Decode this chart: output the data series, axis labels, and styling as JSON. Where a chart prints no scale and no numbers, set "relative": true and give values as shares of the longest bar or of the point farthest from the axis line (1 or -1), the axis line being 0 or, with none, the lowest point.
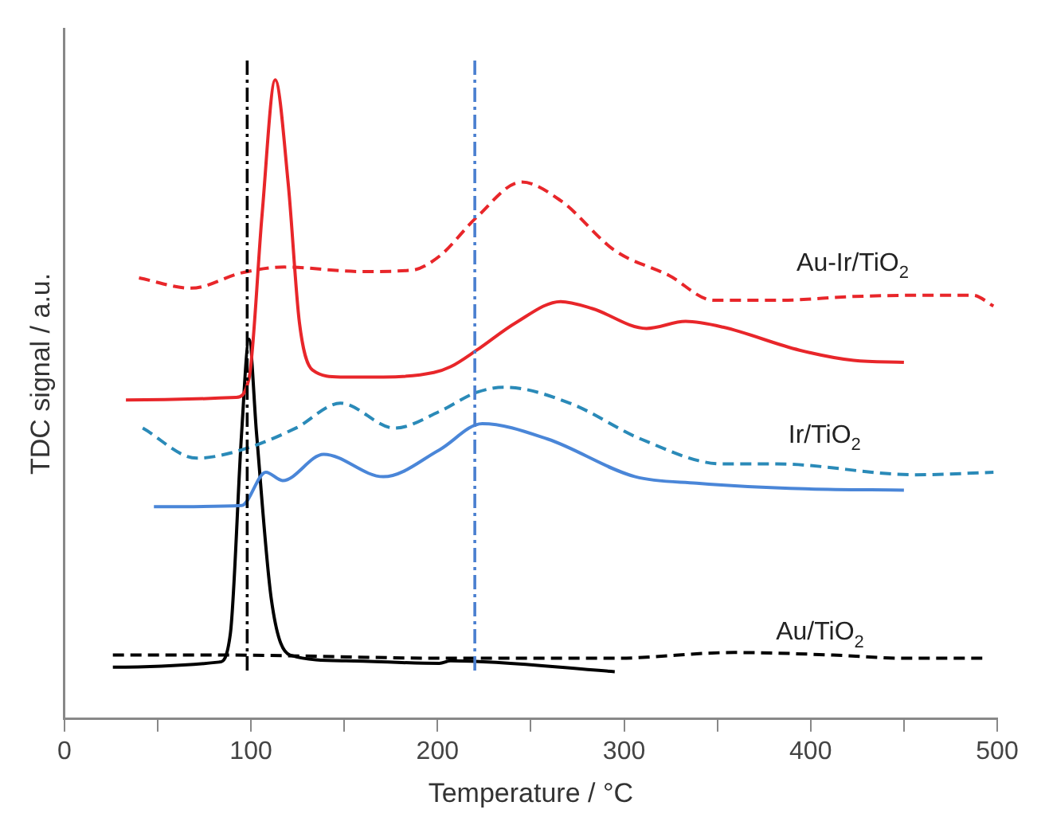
{
  "chart_data": {
    "type": "line",
    "xlabel": "Temperature / °C",
    "ylabel": "TDC signal / a.u.",
    "relative": true,
    "legend": false,
    "grid": false,
    "marker": "none",
    "xlim": [
      0,
      500
    ],
    "xticks": [
      0,
      {
        "value": 50,
        "label": null
      },
      100,
      {
        "value": 150,
        "label": null
      },
      200,
      {
        "value": 250,
        "label": null
      },
      300,
      {
        "value": 350,
        "label": null
      },
      400,
      {
        "value": 450,
        "label": null
      },
      500
    ],
    "series": [
      {
        "color": "#e8262a",
        "line_style": "dashed",
        "x": [
          40,
          68,
          95,
          118,
          159,
          186,
          201,
          221,
          245,
          266,
          295,
          324,
          348,
          383,
          423,
          464,
          487,
          498
        ],
        "values": [
          0.69,
          0.674,
          0.698,
          0.707,
          0.7,
          0.702,
          0.724,
          0.785,
          0.84,
          0.811,
          0.733,
          0.694,
          0.655,
          0.655,
          0.661,
          0.663,
          0.663,
          0.646
        ]
      },
      {
        "color": "#e8262a",
        "line_style": "solid",
        "x": [
          33,
          92,
          99,
          106,
          113,
          120,
          126,
          133,
          148,
          171,
          198,
          207,
          221,
          242,
          266,
          283,
          312,
          333,
          353,
          394,
          423,
          450
        ],
        "values": [
          0.499,
          0.503,
          0.533,
          0.79,
          1,
          0.837,
          0.62,
          0.546,
          0.535,
          0.535,
          0.542,
          0.551,
          0.577,
          0.62,
          0.653,
          0.642,
          0.611,
          0.622,
          0.613,
          0.577,
          0.561,
          0.558
        ]
      },
      {
        "color": "#2a8ab8",
        "line_style": "dashed",
        "x": [
          42,
          71,
          95,
          124,
          148,
          177,
          201,
          221,
          236,
          271,
          309,
          353,
          382,
          456,
          498
        ],
        "values": [
          0.455,
          0.408,
          0.421,
          0.455,
          0.494,
          0.455,
          0.481,
          0.511,
          0.519,
          0.494,
          0.438,
          0.399,
          0.399,
          0.382,
          0.386
        ]
      },
      {
        "color": "#4a86d8",
        "line_style": "solid",
        "x": [
          48,
          95,
          108,
          117,
          139,
          171,
          201,
          224,
          259,
          306,
          339,
          397,
          450
        ],
        "values": [
          0.332,
          0.334,
          0.386,
          0.373,
          0.414,
          0.379,
          0.421,
          0.462,
          0.438,
          0.379,
          0.369,
          0.36,
          0.358
        ]
      },
      {
        "color": "#000000",
        "line_style": "dashed",
        "x": [
          26,
          83,
          207,
          295,
          359,
          412,
          450,
          492
        ],
        "values": [
          0.1,
          0.1,
          0.095,
          0.095,
          0.104,
          0.1,
          0.095,
          0.095
        ]
      },
      {
        "color": "#000000",
        "line_style": "solid",
        "x": [
          26,
          83,
          89,
          95,
          99,
          103,
          111,
          121,
          151,
          201,
          207,
          295
        ],
        "values": [
          0.081,
          0.089,
          0.134,
          0.447,
          0.594,
          0.447,
          0.186,
          0.1,
          0.091,
          0.087,
          0.091,
          0.074
        ]
      }
    ],
    "ref_lines": [
      {
        "axis": "x",
        "value": 98,
        "color": "#000000",
        "line_style": "dashdot"
      },
      {
        "axis": "x",
        "value": 220,
        "color": "#4a7fd0",
        "line_style": "dashdot"
      }
    ],
    "annotations": [
      "Au-Ir/TiO$_{2}$",
      "Ir/TiO$_{2}$",
      "Au/TiO$_{2}$"
    ]
  }
}
